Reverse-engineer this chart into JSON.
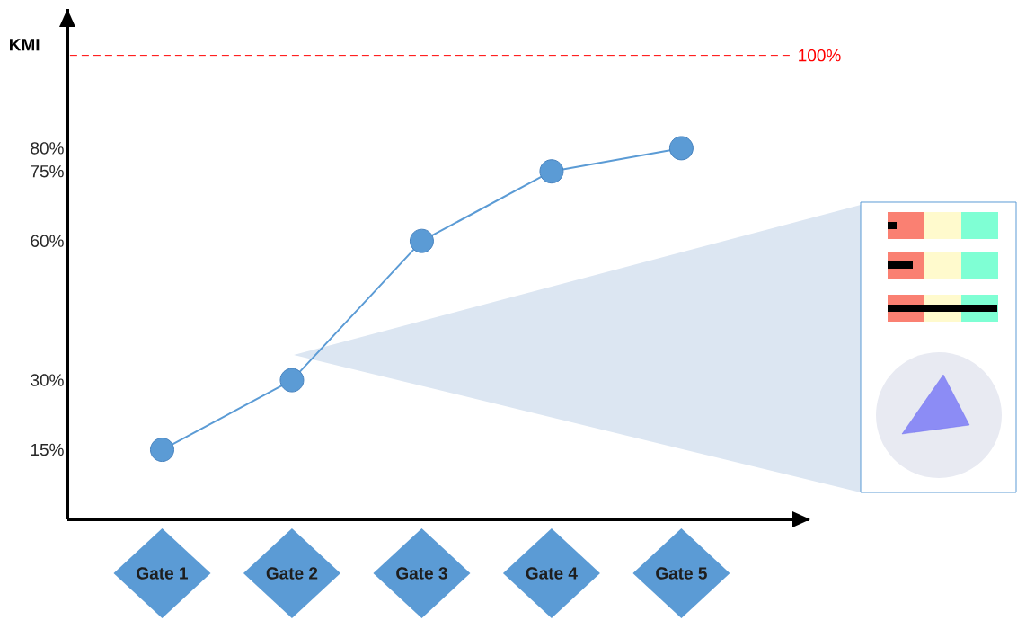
{
  "chart_data": {
    "type": "line",
    "ylabel": "KMI",
    "categories": [
      "Gate 1",
      "Gate 2",
      "Gate 3",
      "Gate 4",
      "Gate 5"
    ],
    "values": [
      15,
      30,
      60,
      75,
      80
    ],
    "color": "#5b9bd5",
    "marker": "circle",
    "line_style": "solid",
    "ylim": [
      0,
      110
    ],
    "yticks": [
      {
        "value": 15,
        "label": "15%"
      },
      {
        "value": 30,
        "label": "30%"
      },
      {
        "value": 60,
        "label": "60%"
      },
      {
        "value": 75,
        "label": "75%"
      },
      {
        "value": 80,
        "label": "80%"
      }
    ],
    "ref_lines": [
      {
        "axis": "y",
        "value": 100,
        "label": "100%",
        "color": "#ff0000",
        "line_style": "dashed"
      }
    ]
  }
}
